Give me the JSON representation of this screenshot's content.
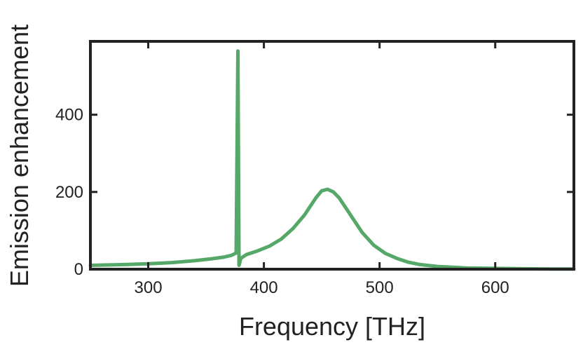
{
  "chart_data": {
    "type": "line",
    "title": "",
    "xlabel": "Frequency [THz]",
    "ylabel": "Emission enhancement",
    "xlim": [
      250,
      668
    ],
    "ylim": [
      0,
      590
    ],
    "xticks": [
      300,
      400,
      500,
      600
    ],
    "yticks": [
      0,
      200,
      400
    ],
    "xtick_labels": [
      "300",
      "400",
      "500",
      "600"
    ],
    "ytick_labels": [
      "0",
      "200",
      "400"
    ],
    "grid": false,
    "legend": "none",
    "series": [
      {
        "color": "#55a868",
        "x": [
          250,
          280,
          300,
          320,
          340,
          355,
          365,
          372,
          376,
          377.5,
          378,
          378.5,
          379,
          380,
          385,
          395,
          405,
          415,
          425,
          435,
          445,
          450,
          455,
          460,
          465,
          475,
          485,
          495,
          505,
          515,
          525,
          535,
          550,
          575,
          600,
          625,
          650,
          668
        ],
        "y": [
          10,
          12,
          14,
          17,
          22,
          27,
          31,
          36,
          42,
          565,
          300,
          10,
          15,
          28,
          38,
          48,
          60,
          78,
          105,
          140,
          185,
          203,
          207,
          200,
          185,
          140,
          95,
          62,
          41,
          28,
          18,
          12,
          7,
          3,
          2,
          1,
          0.5,
          0.3
        ]
      }
    ]
  }
}
